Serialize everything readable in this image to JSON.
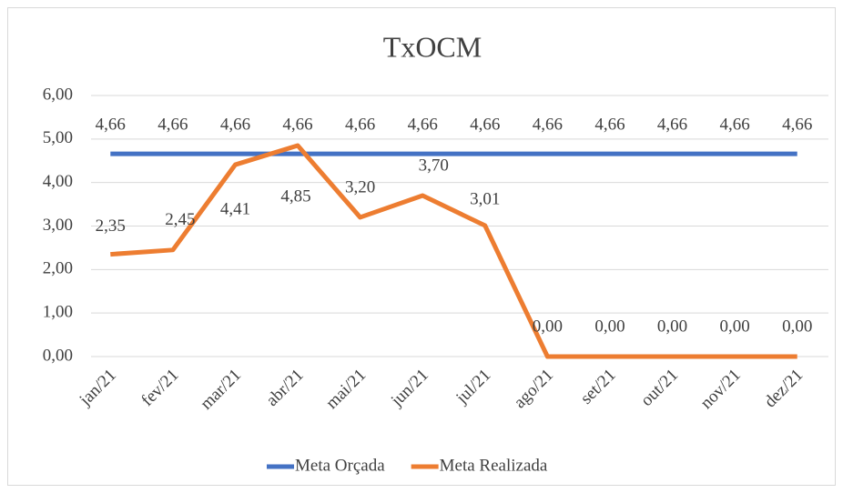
{
  "chart_data": {
    "type": "line",
    "title": "TxOCM",
    "categories": [
      "jan/21",
      "fev/21",
      "mar/21",
      "abr/21",
      "mai/21",
      "jun/21",
      "jul/21",
      "ago/21",
      "set/21",
      "out/21",
      "nov/21",
      "dez/21"
    ],
    "series": [
      {
        "name": "Meta Orçada",
        "color": "#4472c4",
        "values": [
          4.66,
          4.66,
          4.66,
          4.66,
          4.66,
          4.66,
          4.66,
          4.66,
          4.66,
          4.66,
          4.66,
          4.66
        ],
        "value_labels": [
          "4,66",
          "4,66",
          "4,66",
          "4,66",
          "4,66",
          "4,66",
          "4,66",
          "4,66",
          "4,66",
          "4,66",
          "4,66",
          "4,66"
        ]
      },
      {
        "name": "Meta Realizada",
        "color": "#ed7d31",
        "values": [
          2.35,
          2.45,
          4.41,
          4.85,
          3.2,
          3.7,
          3.01,
          0,
          0,
          0,
          0,
          0
        ],
        "value_labels": [
          "2,35",
          "2,45",
          "4,41",
          "4,85",
          "3,20",
          "3,70",
          "3,01",
          "0,00",
          "0,00",
          "0,00",
          "0,00",
          "0,00"
        ]
      }
    ],
    "ylim": [
      0,
      6
    ],
    "yticks": [
      {
        "value": 0,
        "label": "0,00"
      },
      {
        "value": 1,
        "label": "1,00"
      },
      {
        "value": 2,
        "label": "2,00"
      },
      {
        "value": 3,
        "label": "3,00"
      },
      {
        "value": 4,
        "label": "4,00"
      },
      {
        "value": 5,
        "label": "5,00"
      },
      {
        "value": 6,
        "label": "6,00"
      }
    ],
    "grid": true,
    "legend": "bottom"
  }
}
